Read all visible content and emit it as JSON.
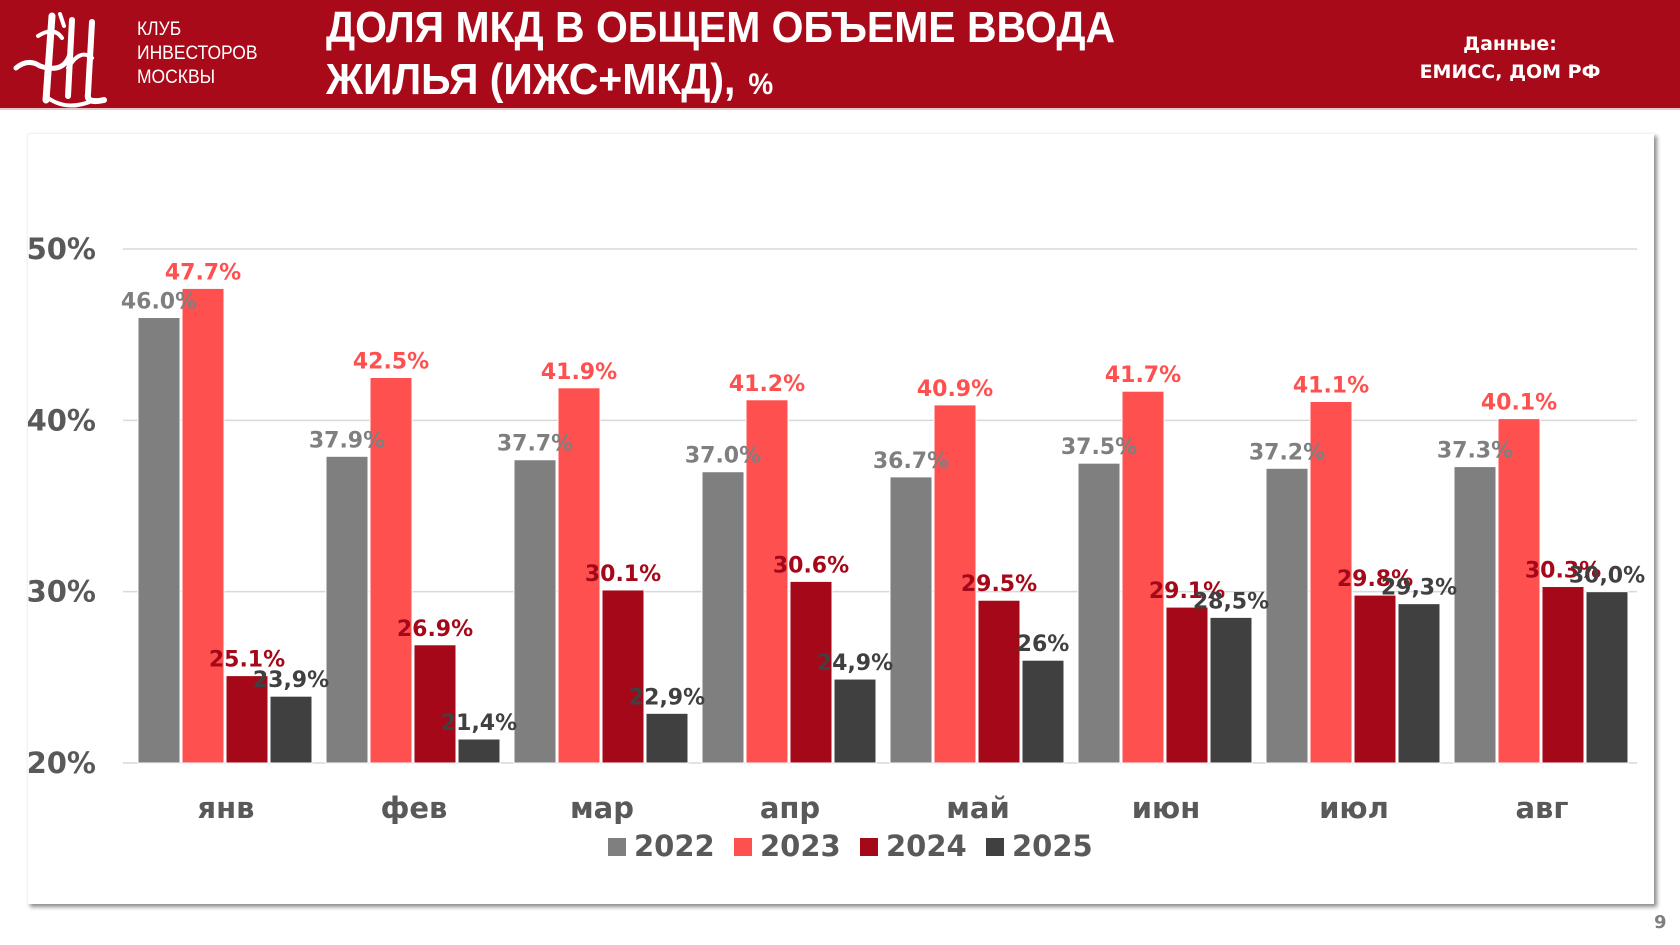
{
  "header": {
    "logo_lines": [
      "КЛУБ",
      "ИНВЕСТОРОВ",
      "МОСКВЫ"
    ],
    "title_line1": "ДОЛЯ МКД В ОБЩЕМ ОБЪЕМЕ ВВОДА",
    "title_line2": "ЖИЛЬЯ (ИЖС+МКД),",
    "title_unit": "%",
    "source_label": "Данные:",
    "source_value": "ЕМИСС, ДОМ РФ",
    "background_color": "#a90a1a"
  },
  "page_number": "9",
  "chart_data": {
    "type": "bar",
    "title": "ДОЛЯ МКД В ОБЩЕМ ОБЪЕМЕ ВВОДА ЖИЛЬЯ (ИЖС+МКД), %",
    "xlabel": "",
    "ylabel": "",
    "ylim": [
      20,
      50
    ],
    "yticks": [
      20,
      30,
      40,
      50
    ],
    "ytick_labels": [
      "20%",
      "30%",
      "40%",
      "50%"
    ],
    "grid": true,
    "legend_position": "bottom",
    "categories": [
      "янв",
      "фев",
      "мар",
      "апр",
      "май",
      "июн",
      "июл",
      "авг"
    ],
    "series": [
      {
        "name": "2022",
        "color": "#7f7f7f",
        "label_color": "#7f7f7f",
        "values": [
          46.0,
          37.9,
          37.7,
          37.0,
          36.7,
          37.5,
          37.2,
          37.3
        ],
        "labels": [
          "46.0%",
          "37.9%",
          "37.7%",
          "37.0%",
          "36.7%",
          "37.5%",
          "37.2%",
          "37.3%"
        ]
      },
      {
        "name": "2023",
        "color": "#ff5050",
        "label_color": "#ff5050",
        "values": [
          47.7,
          42.5,
          41.9,
          41.2,
          40.9,
          41.7,
          41.1,
          40.1
        ],
        "labels": [
          "47.7%",
          "42.5%",
          "41.9%",
          "41.2%",
          "40.9%",
          "41.7%",
          "41.1%",
          "40.1%"
        ]
      },
      {
        "name": "2024",
        "color": "#a50819",
        "label_color": "#a50819",
        "values": [
          25.1,
          26.9,
          30.1,
          30.6,
          29.5,
          29.1,
          29.8,
          30.3
        ],
        "labels": [
          "25.1%",
          "26.9%",
          "30.1%",
          "30.6%",
          "29.5%",
          "29.1%",
          "29.8%",
          "30.3%"
        ]
      },
      {
        "name": "2025",
        "color": "#404040",
        "label_color": "#404040",
        "values": [
          23.9,
          21.4,
          22.9,
          24.9,
          26.0,
          28.5,
          29.3,
          30.0
        ],
        "labels": [
          "23,9%",
          "21,4%",
          "22,9%",
          "24,9%",
          "26%",
          "28,5%",
          "29,3%",
          "30,0%"
        ]
      }
    ]
  }
}
